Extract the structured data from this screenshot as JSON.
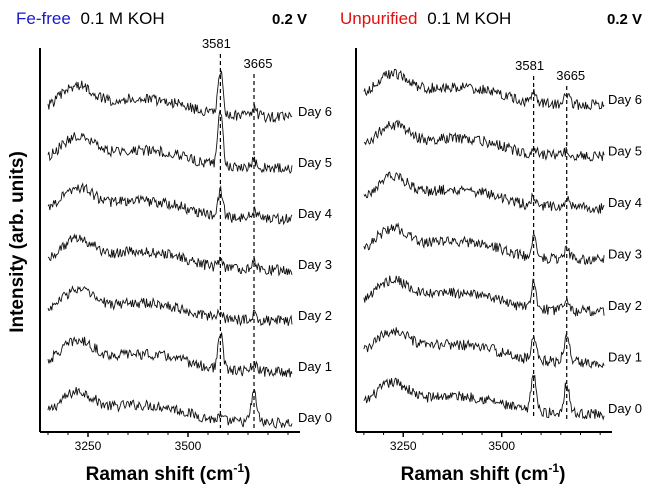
{
  "chart_data": [
    {
      "type": "line",
      "title_colored": "Fe-free",
      "title_colored_color": "#1a1acc",
      "title_rest": "0.1 M KOH",
      "potential": "0.2 V",
      "xlabel_main": "Raman shift (cm",
      "xlabel_sup": "-1",
      "xlabel_close": ")",
      "ylabel": "Intensity (arb. units)",
      "xlim": [
        3130,
        3780
      ],
      "xticks": [
        3250,
        3500
      ],
      "peaks": [
        {
          "x": 3581,
          "label": "3581",
          "min_series": 0
        },
        {
          "x": 3665,
          "label": "3665",
          "min_series": 0
        }
      ],
      "series": [
        {
          "name": "Day 0",
          "level": 0,
          "peak_heights": [
            0.05,
            0.45
          ]
        },
        {
          "name": "Day 1",
          "level": 1,
          "peak_heights": [
            0.55,
            0.1
          ]
        },
        {
          "name": "Day 2",
          "level": 2,
          "peak_heights": [
            0.12,
            0.1
          ]
        },
        {
          "name": "Day 3",
          "level": 3,
          "peak_heights": [
            0.1,
            0.12
          ]
        },
        {
          "name": "Day 4",
          "level": 4,
          "peak_heights": [
            0.4,
            0.12
          ]
        },
        {
          "name": "Day 5",
          "level": 5,
          "peak_heights": [
            0.85,
            0.1
          ]
        },
        {
          "name": "Day 6",
          "level": 6,
          "peak_heights": [
            0.65,
            0.12
          ]
        }
      ]
    },
    {
      "type": "line",
      "title_colored": "Unpurified",
      "title_colored_color": "#e01010",
      "title_rest": "0.1 M KOH",
      "potential": "0.2 V",
      "xlabel_main": "Raman shift (cm",
      "xlabel_sup": "-1",
      "xlabel_close": ")",
      "xlim": [
        3130,
        3780
      ],
      "xticks": [
        3250,
        3500
      ],
      "peaks": [
        {
          "x": 3581,
          "label": "3581"
        },
        {
          "x": 3665,
          "label": "3665"
        }
      ],
      "series": [
        {
          "name": "Day 0",
          "level": 0,
          "peak_heights": [
            0.6,
            0.45
          ]
        },
        {
          "name": "Day 1",
          "level": 1,
          "peak_heights": [
            0.4,
            0.4
          ]
        },
        {
          "name": "Day 2",
          "level": 2,
          "peak_heights": [
            0.4,
            0.2
          ]
        },
        {
          "name": "Day 3",
          "level": 3,
          "peak_heights": [
            0.3,
            0.15
          ]
        },
        {
          "name": "Day 4",
          "level": 4,
          "peak_heights": [
            0.15,
            0.12
          ]
        },
        {
          "name": "Day 5",
          "level": 5,
          "peak_heights": [
            0.08,
            0.06
          ]
        },
        {
          "name": "Day 6",
          "level": 6,
          "peak_heights": [
            0.2,
            0.12
          ]
        }
      ]
    }
  ]
}
